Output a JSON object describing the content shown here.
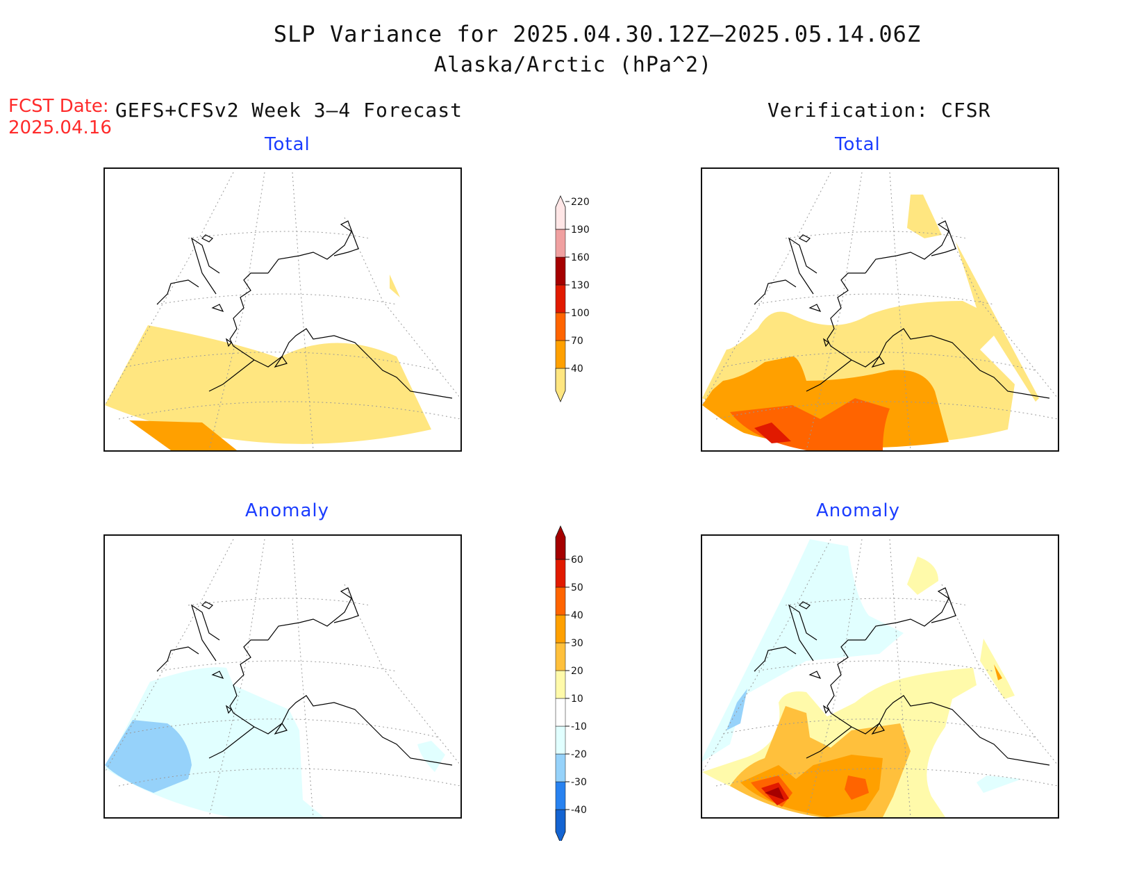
{
  "header": {
    "title": "SLP Variance for 2025.04.30.12Z–2025.05.14.06Z",
    "subtitle": "Alaska/Arctic (hPa^2)",
    "fcst_label": "FCST Date:",
    "fcst_date": "2025.04.16",
    "left_heading": "GEFS+CFSv2 Week 3–4 Forecast",
    "right_heading": "Verification: CFSR"
  },
  "panels": {
    "forecast_total": {
      "title": "Total"
    },
    "verification_total": {
      "title": "Total"
    },
    "forecast_anomaly": {
      "title": "Anomaly"
    },
    "verification_anomaly": {
      "title": "Anomaly"
    }
  },
  "colorbars": {
    "total": {
      "labels": [
        "40",
        "70",
        "100",
        "130",
        "160",
        "190",
        "220"
      ],
      "colors": [
        "#ffe680",
        "#ffa000",
        "#ff6400",
        "#e11a00",
        "#a50000",
        "#f0a0a0",
        "#ffe6e6"
      ]
    },
    "anomaly": {
      "labels": [
        "-40",
        "-30",
        "-20",
        "-10",
        "10",
        "20",
        "30",
        "40",
        "50",
        "60"
      ],
      "colors": [
        "#1464d2",
        "#2882f0",
        "#96d2fa",
        "#e1ffff",
        "#ffffff",
        "#fffaaa",
        "#ffc03c",
        "#ffa000",
        "#ff6400",
        "#e11a00",
        "#a50000"
      ]
    }
  },
  "colors": {
    "title_text": "#111111",
    "fcst_text": "#ff2a2a",
    "panel_title_text": "#1a3cff"
  }
}
